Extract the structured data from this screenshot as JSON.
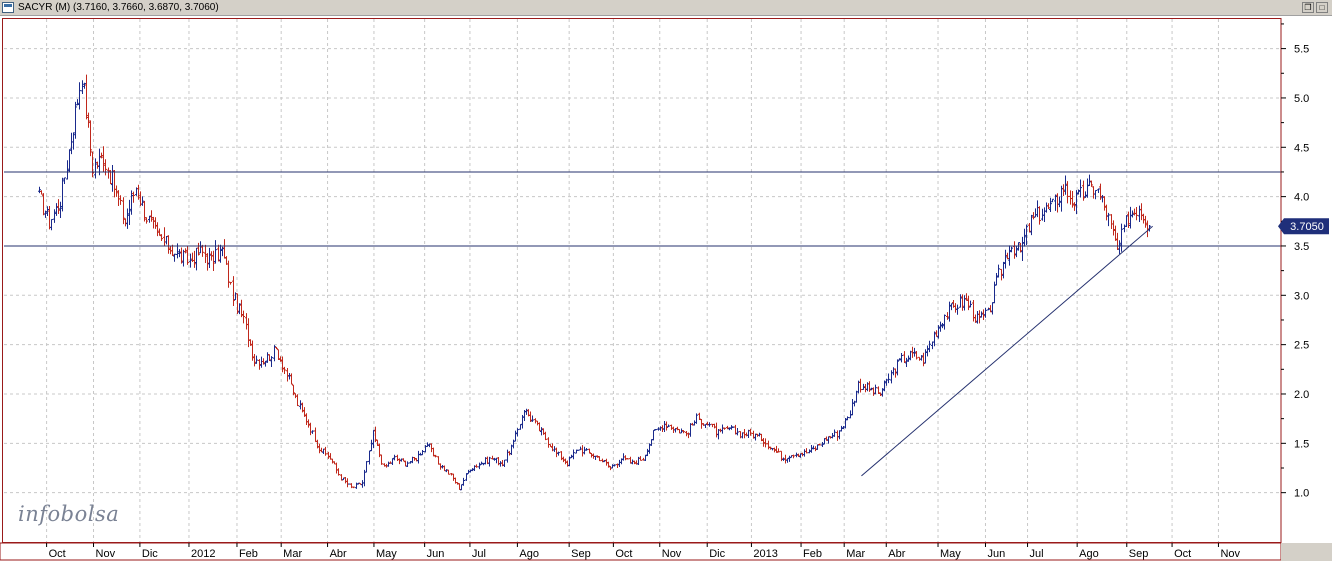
{
  "window": {
    "title": "SACYR (M) (3.7160, 3.7660, 3.6870, 3.7060)",
    "restore_glyph": "❐",
    "maximize_glyph": "□"
  },
  "logo": {
    "text": "infobolsa"
  },
  "colors": {
    "up_bar": "#1a2a8c",
    "down_bar": "#c0281c",
    "grid": "#c8c8c8",
    "frame": "#9a1a1a",
    "hline": "#24306e",
    "price_tag_bg": "#1f2f7a",
    "price_tag_text": "#ffffff"
  },
  "chart_data": {
    "type": "ohlc",
    "price_tag": "3.7050",
    "ylim": [
      0.5,
      5.8
    ],
    "y_ticks": [
      1.0,
      1.5,
      2.0,
      2.5,
      3.0,
      3.5,
      4.0,
      4.5,
      5.0,
      5.5
    ],
    "y_tick_labels": [
      "1.0",
      "1.5",
      "2.0",
      "2.5",
      "3.0",
      "3.5",
      "4.0",
      "4.5",
      "5.0",
      "5.5"
    ],
    "x_labels": [
      {
        "label": "Oct",
        "week": 0.75
      },
      {
        "label": "Nov",
        "week": 5.1
      },
      {
        "label": "Dic",
        "week": 9.4
      },
      {
        "label": "2012",
        "week": 13.95
      },
      {
        "label": "Feb",
        "week": 18.4
      },
      {
        "label": "Mar",
        "week": 22.5
      },
      {
        "label": "Abr",
        "week": 26.8
      },
      {
        "label": "May",
        "week": 31.1
      },
      {
        "label": "Jun",
        "week": 35.8
      },
      {
        "label": "Jul",
        "week": 40.0
      },
      {
        "label": "Ago",
        "week": 44.4
      },
      {
        "label": "Sep",
        "week": 49.2
      },
      {
        "label": "Oct",
        "week": 53.3
      },
      {
        "label": "Nov",
        "week": 57.6
      },
      {
        "label": "Dic",
        "week": 62.0
      },
      {
        "label": "2013",
        "week": 66.1
      },
      {
        "label": "Feb",
        "week": 70.7
      },
      {
        "label": "Mar",
        "week": 74.7
      },
      {
        "label": "Abr",
        "week": 78.6
      },
      {
        "label": "May",
        "week": 83.4
      },
      {
        "label": "Jun",
        "week": 87.8
      },
      {
        "label": "Jul",
        "week": 91.7
      },
      {
        "label": "Ago",
        "week": 96.3
      },
      {
        "label": "Sep",
        "week": 100.9
      },
      {
        "label": "Oct",
        "week": 105.1
      },
      {
        "label": "Nov",
        "week": 109.4
      }
    ],
    "week_range": [
      -3.2,
      115.2
    ],
    "closes": [
      [
        0,
        4.0
      ],
      [
        1,
        3.75
      ],
      [
        2,
        3.95
      ],
      [
        3,
        4.6
      ],
      [
        4,
        5.25
      ],
      [
        5,
        4.3
      ],
      [
        6,
        4.4
      ],
      [
        7,
        4.1
      ],
      [
        8,
        3.75
      ],
      [
        9,
        4.1
      ],
      [
        10,
        3.8
      ],
      [
        11,
        3.6
      ],
      [
        12,
        3.5
      ],
      [
        13,
        3.4
      ],
      [
        14,
        3.35
      ],
      [
        15,
        3.45
      ],
      [
        16,
        3.35
      ],
      [
        17,
        3.45
      ],
      [
        18,
        3.0
      ],
      [
        19,
        2.75
      ],
      [
        20,
        2.35
      ],
      [
        21,
        2.35
      ],
      [
        22,
        2.45
      ],
      [
        23,
        2.2
      ],
      [
        24,
        1.9
      ],
      [
        25,
        1.7
      ],
      [
        26,
        1.45
      ],
      [
        27,
        1.35
      ],
      [
        28,
        1.15
      ],
      [
        29,
        1.05
      ],
      [
        30,
        1.1
      ],
      [
        31,
        1.6
      ],
      [
        32,
        1.25
      ],
      [
        33,
        1.35
      ],
      [
        34,
        1.3
      ],
      [
        35,
        1.35
      ],
      [
        36,
        1.5
      ],
      [
        37,
        1.3
      ],
      [
        38,
        1.2
      ],
      [
        39,
        1.05
      ],
      [
        40,
        1.25
      ],
      [
        41,
        1.3
      ],
      [
        42,
        1.35
      ],
      [
        43,
        1.3
      ],
      [
        44,
        1.5
      ],
      [
        45,
        1.85
      ],
      [
        46,
        1.7
      ],
      [
        47,
        1.55
      ],
      [
        48,
        1.4
      ],
      [
        49,
        1.3
      ],
      [
        50,
        1.45
      ],
      [
        51,
        1.4
      ],
      [
        52,
        1.35
      ],
      [
        53,
        1.25
      ],
      [
        54,
        1.35
      ],
      [
        55,
        1.3
      ],
      [
        56,
        1.35
      ],
      [
        57,
        1.6
      ],
      [
        58,
        1.7
      ],
      [
        59,
        1.65
      ],
      [
        60,
        1.6
      ],
      [
        61,
        1.75
      ],
      [
        62,
        1.7
      ],
      [
        63,
        1.6
      ],
      [
        64,
        1.65
      ],
      [
        65,
        1.6
      ],
      [
        66,
        1.6
      ],
      [
        67,
        1.55
      ],
      [
        68,
        1.45
      ],
      [
        69,
        1.35
      ],
      [
        70,
        1.4
      ],
      [
        71,
        1.4
      ],
      [
        72,
        1.45
      ],
      [
        73,
        1.55
      ],
      [
        74,
        1.6
      ],
      [
        75,
        1.75
      ],
      [
        76,
        2.1
      ],
      [
        77,
        2.05
      ],
      [
        78,
        2.0
      ],
      [
        79,
        2.2
      ],
      [
        80,
        2.35
      ],
      [
        81,
        2.4
      ],
      [
        82,
        2.35
      ],
      [
        83,
        2.6
      ],
      [
        84,
        2.8
      ],
      [
        85,
        2.9
      ],
      [
        86,
        2.95
      ],
      [
        87,
        2.75
      ],
      [
        88,
        2.8
      ],
      [
        89,
        3.2
      ],
      [
        90,
        3.5
      ],
      [
        91,
        3.45
      ],
      [
        92,
        3.75
      ],
      [
        93,
        3.85
      ],
      [
        94,
        3.9
      ],
      [
        95,
        4.1
      ],
      [
        96,
        3.95
      ],
      [
        97,
        4.05
      ],
      [
        98,
        4.1
      ],
      [
        99,
        3.85
      ],
      [
        100,
        3.45
      ],
      [
        101,
        3.8
      ],
      [
        102,
        3.9
      ],
      [
        103,
        3.7
      ]
    ],
    "horizontal_lines": [
      4.25,
      3.5
    ],
    "trendline": {
      "from": [
        76.3,
        1.17
      ],
      "to": [
        103.3,
        3.7
      ]
    }
  }
}
